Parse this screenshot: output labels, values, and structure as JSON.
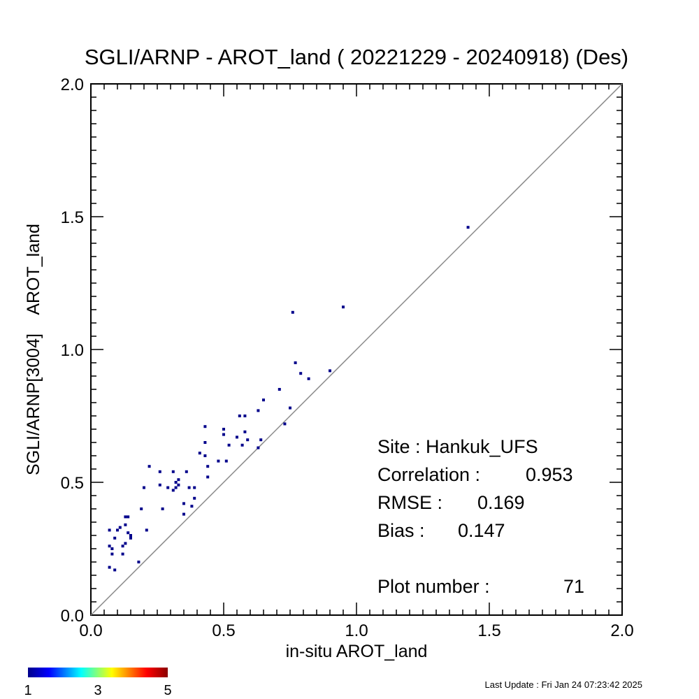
{
  "chart_data": {
    "type": "scatter",
    "title": "SGLI/ARNP - AROT_land ( 20221229 - 20240918) (Des)",
    "xlabel": "in-situ AROT_land",
    "ylabel": "SGLI/ARNP[3004]    AROT_land",
    "xlim": [
      0.0,
      2.0
    ],
    "ylim": [
      0.0,
      2.0
    ],
    "x_ticks": [
      "0.0",
      "0.5",
      "1.0",
      "1.5",
      "2.0"
    ],
    "y_ticks": [
      "0.0",
      "0.5",
      "1.0",
      "1.5",
      "2.0"
    ],
    "one_to_one_line": true,
    "grid": false,
    "points": [
      [
        0.07,
        0.32
      ],
      [
        0.07,
        0.26
      ],
      [
        0.07,
        0.18
      ],
      [
        0.08,
        0.25
      ],
      [
        0.08,
        0.23
      ],
      [
        0.09,
        0.17
      ],
      [
        0.09,
        0.29
      ],
      [
        0.1,
        0.32
      ],
      [
        0.11,
        0.33
      ],
      [
        0.12,
        0.26
      ],
      [
        0.12,
        0.23
      ],
      [
        0.13,
        0.27
      ],
      [
        0.13,
        0.34
      ],
      [
        0.13,
        0.37
      ],
      [
        0.14,
        0.37
      ],
      [
        0.14,
        0.31
      ],
      [
        0.15,
        0.29
      ],
      [
        0.15,
        0.3
      ],
      [
        0.18,
        0.2
      ],
      [
        0.19,
        0.4
      ],
      [
        0.2,
        0.48
      ],
      [
        0.21,
        0.32
      ],
      [
        0.22,
        0.56
      ],
      [
        0.26,
        0.54
      ],
      [
        0.26,
        0.49
      ],
      [
        0.27,
        0.4
      ],
      [
        0.29,
        0.48
      ],
      [
        0.31,
        0.54
      ],
      [
        0.31,
        0.47
      ],
      [
        0.32,
        0.48
      ],
      [
        0.32,
        0.5
      ],
      [
        0.33,
        0.51
      ],
      [
        0.33,
        0.49
      ],
      [
        0.35,
        0.42
      ],
      [
        0.35,
        0.38
      ],
      [
        0.36,
        0.54
      ],
      [
        0.37,
        0.48
      ],
      [
        0.38,
        0.41
      ],
      [
        0.39,
        0.44
      ],
      [
        0.39,
        0.48
      ],
      [
        0.41,
        0.61
      ],
      [
        0.43,
        0.71
      ],
      [
        0.43,
        0.65
      ],
      [
        0.43,
        0.6
      ],
      [
        0.44,
        0.56
      ],
      [
        0.44,
        0.52
      ],
      [
        0.48,
        0.58
      ],
      [
        0.5,
        0.7
      ],
      [
        0.5,
        0.68
      ],
      [
        0.51,
        0.58
      ],
      [
        0.52,
        0.64
      ],
      [
        0.55,
        0.67
      ],
      [
        0.56,
        0.75
      ],
      [
        0.57,
        0.64
      ],
      [
        0.58,
        0.75
      ],
      [
        0.58,
        0.69
      ],
      [
        0.59,
        0.66
      ],
      [
        0.63,
        0.77
      ],
      [
        0.63,
        0.63
      ],
      [
        0.64,
        0.66
      ],
      [
        0.65,
        0.81
      ],
      [
        0.71,
        0.85
      ],
      [
        0.73,
        0.72
      ],
      [
        0.75,
        0.78
      ],
      [
        0.76,
        1.14
      ],
      [
        0.77,
        0.95
      ],
      [
        0.79,
        0.91
      ],
      [
        0.82,
        0.89
      ],
      [
        0.9,
        0.92
      ],
      [
        0.95,
        1.16
      ],
      [
        1.42,
        1.46
      ]
    ],
    "point_color": "#00008b",
    "colorbar": {
      "min_label": "1",
      "mid_label": "3",
      "max_label": "5",
      "colors": [
        "#00008b",
        "#0000ff",
        "#00ffff",
        "#ffff00",
        "#ff0000",
        "#8b0000"
      ]
    }
  },
  "stats": {
    "site": "Site : Hankuk_UFS",
    "correlation_label": "Correlation :",
    "correlation_value": "0.953",
    "rmse_label": "RMSE :",
    "rmse_value": "0.169",
    "bias_label": "Bias :",
    "bias_value": "0.147",
    "plot_number_label": "Plot number :",
    "plot_number_value": "71"
  },
  "footer": {
    "last_update": "Last Update : Fri Jan 24 07:23:42 2025"
  }
}
